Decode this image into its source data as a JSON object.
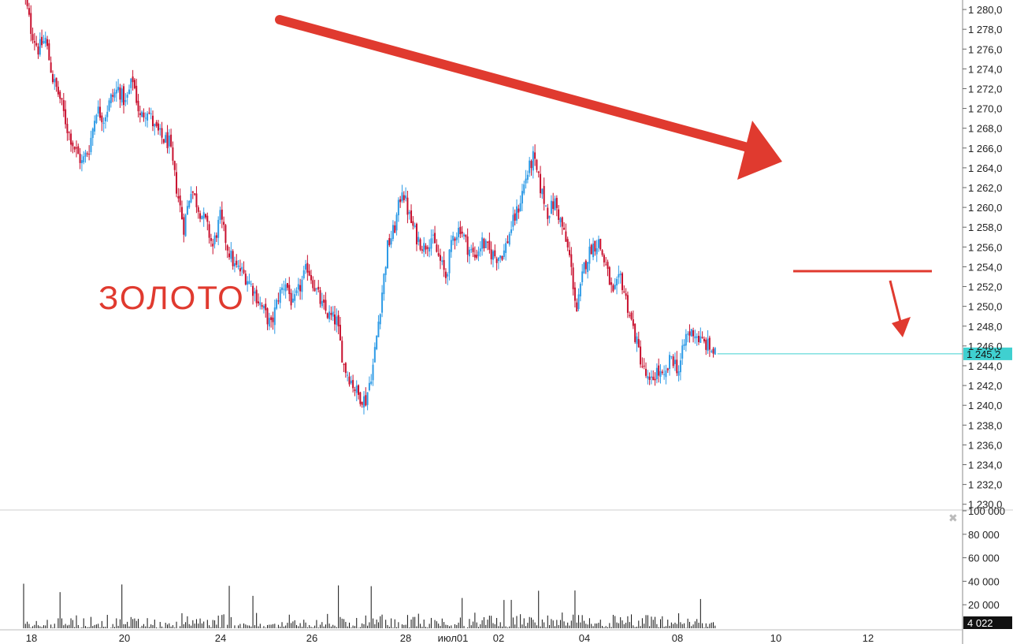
{
  "chart_data": [
    {
      "type": "candlestick",
      "annotation": "ЗОЛОТО",
      "colors": {
        "up": "#2e9be6",
        "down": "#c8102e",
        "annotation": "#e03a2f",
        "last_price_line": "#3fd0d0"
      },
      "y_ticks": [
        "1 280,0",
        "1 278,0",
        "1 276,0",
        "1 274,0",
        "1 272,0",
        "1 270,0",
        "1 268,0",
        "1 266,0",
        "1 264,0",
        "1 262,0",
        "1 260,0",
        "1 258,0",
        "1 256,0",
        "1 254,0",
        "1 252,0",
        "1 250,0",
        "1 248,0",
        "1 246,0",
        "1 244,0",
        "1 242,0",
        "1 240,0",
        "1 238,0",
        "1 236,0",
        "1 234,0",
        "1 232,0",
        "1 230,0"
      ],
      "ylim": [
        1229.5,
        1280.8
      ],
      "last_price": 1245.2,
      "last_price_label": "1 245,2",
      "x_labels": [
        "18",
        "20",
        "24",
        "26",
        "28",
        "июл01",
        "02",
        "04",
        "08",
        "10",
        "12"
      ],
      "close_path": [
        [
          0,
          1282.0
        ],
        [
          4,
          1278.0
        ],
        [
          8,
          1276.0
        ],
        [
          12,
          1277.0
        ],
        [
          16,
          1273.0
        ],
        [
          20,
          1271.0
        ],
        [
          24,
          1268.0
        ],
        [
          28,
          1266.0
        ],
        [
          32,
          1264.5
        ],
        [
          36,
          1266.0
        ],
        [
          40,
          1270.0
        ],
        [
          44,
          1269.0
        ],
        [
          48,
          1271.0
        ],
        [
          52,
          1272.0
        ],
        [
          56,
          1270.5
        ],
        [
          60,
          1273.0
        ],
        [
          64,
          1269.0
        ],
        [
          68,
          1270.0
        ],
        [
          72,
          1268.0
        ],
        [
          76,
          1267.0
        ],
        [
          80,
          1266.5
        ],
        [
          84,
          1262.0
        ],
        [
          88,
          1258.0
        ],
        [
          92,
          1262.0
        ],
        [
          96,
          1260.0
        ],
        [
          100,
          1258.5
        ],
        [
          104,
          1256.0
        ],
        [
          108,
          1259.0
        ],
        [
          112,
          1256.0
        ],
        [
          116,
          1254.0
        ],
        [
          120,
          1253.5
        ],
        [
          124,
          1252.5
        ],
        [
          128,
          1251.0
        ],
        [
          132,
          1249.5
        ],
        [
          136,
          1248.0
        ],
        [
          140,
          1251.0
        ],
        [
          144,
          1252.5
        ],
        [
          148,
          1250.0
        ],
        [
          152,
          1252.0
        ],
        [
          156,
          1254.0
        ],
        [
          160,
          1252.0
        ],
        [
          164,
          1250.0
        ],
        [
          168,
          1249.0
        ],
        [
          172,
          1248.5
        ],
        [
          176,
          1244.0
        ],
        [
          180,
          1242.5
        ],
        [
          184,
          1241.0
        ],
        [
          188,
          1240.5
        ],
        [
          192,
          1244.0
        ],
        [
          196,
          1250.0
        ],
        [
          200,
          1256.0
        ],
        [
          204,
          1258.0
        ],
        [
          208,
          1262.0
        ],
        [
          212,
          1259.0
        ],
        [
          216,
          1257.0
        ],
        [
          220,
          1256.0
        ],
        [
          224,
          1257.0
        ],
        [
          228,
          1255.0
        ],
        [
          232,
          1253.0
        ],
        [
          236,
          1257.0
        ],
        [
          240,
          1258.0
        ],
        [
          244,
          1256.0
        ],
        [
          248,
          1255.0
        ],
        [
          252,
          1256.5
        ],
        [
          256,
          1255.5
        ],
        [
          260,
          1255.0
        ],
        [
          264,
          1255.5
        ],
        [
          268,
          1258.0
        ],
        [
          272,
          1260.0
        ],
        [
          276,
          1263.0
        ],
        [
          280,
          1265.0
        ],
        [
          284,
          1262.0
        ],
        [
          288,
          1259.5
        ],
        [
          292,
          1260.5
        ],
        [
          296,
          1258.0
        ],
        [
          300,
          1255.0
        ],
        [
          304,
          1249.5
        ],
        [
          308,
          1254.0
        ],
        [
          312,
          1256.0
        ],
        [
          316,
          1256.5
        ],
        [
          320,
          1254.0
        ],
        [
          324,
          1251.0
        ],
        [
          328,
          1253.0
        ],
        [
          332,
          1250.0
        ],
        [
          336,
          1247.0
        ],
        [
          340,
          1244.0
        ],
        [
          344,
          1242.0
        ],
        [
          348,
          1243.5
        ],
        [
          352,
          1242.5
        ],
        [
          356,
          1245.0
        ],
        [
          360,
          1243.5
        ],
        [
          364,
          1247.0
        ],
        [
          368,
          1247.5
        ],
        [
          372,
          1246.5
        ],
        [
          376,
          1246.0
        ],
        [
          380,
          1245.2
        ]
      ],
      "annotations": {
        "big_arrow": {
          "from": [
            100,
            1279.2
          ],
          "to": [
            275,
            1264.5
          ]
        },
        "resistance_line": {
          "from": [
            324,
            1253.2
          ],
          "to": [
            380,
            1253.2
          ]
        },
        "small_arrow": {
          "from": [
            368,
            1252.6
          ],
          "to": [
            376,
            1246.0
          ]
        }
      }
    },
    {
      "type": "bar",
      "series_label": "volume",
      "y_ticks": [
        "100 000",
        "80 000",
        "60 000",
        "40 000",
        "20 000"
      ],
      "ylim": [
        0,
        100000
      ],
      "last_volume": 4022,
      "last_volume_label": "4 022",
      "typical_volume": 12000,
      "peak_volume": 40000
    }
  ]
}
